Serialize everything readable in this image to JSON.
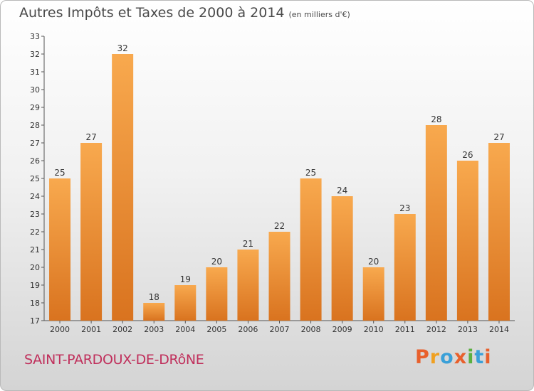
{
  "title": "Autres Impôts et Taxes de 2000 à 2014",
  "subtitle": "(en milliers d'€)",
  "location": "SAINT-PARDOUX-DE-DRôNE",
  "logo": {
    "text": "Proxiti",
    "colors": [
      "#e8602c",
      "#f0a020",
      "#3aa0d8",
      "#e8602c",
      "#5ab040",
      "#3aa0d8",
      "#e8602c"
    ]
  },
  "colors": {
    "bar_light": "#f8a94e",
    "bar_dark": "#d9731f",
    "axis": "#555555"
  },
  "chart_data": {
    "type": "bar",
    "title": "Autres Impôts et Taxes de 2000 à 2014",
    "subtitle": "(en milliers d'€)",
    "categories": [
      "2000",
      "2001",
      "2002",
      "2003",
      "2004",
      "2005",
      "2006",
      "2007",
      "2008",
      "2009",
      "2010",
      "2011",
      "2012",
      "2013",
      "2014"
    ],
    "values": [
      25,
      27,
      32,
      18,
      19,
      20,
      21,
      22,
      25,
      24,
      20,
      23,
      28,
      26,
      27
    ],
    "ylim": [
      17,
      33
    ],
    "yticks": [
      17,
      18,
      19,
      20,
      21,
      22,
      23,
      24,
      25,
      26,
      27,
      28,
      29,
      30,
      31,
      32,
      33
    ],
    "grid": false,
    "data_labels": true
  }
}
